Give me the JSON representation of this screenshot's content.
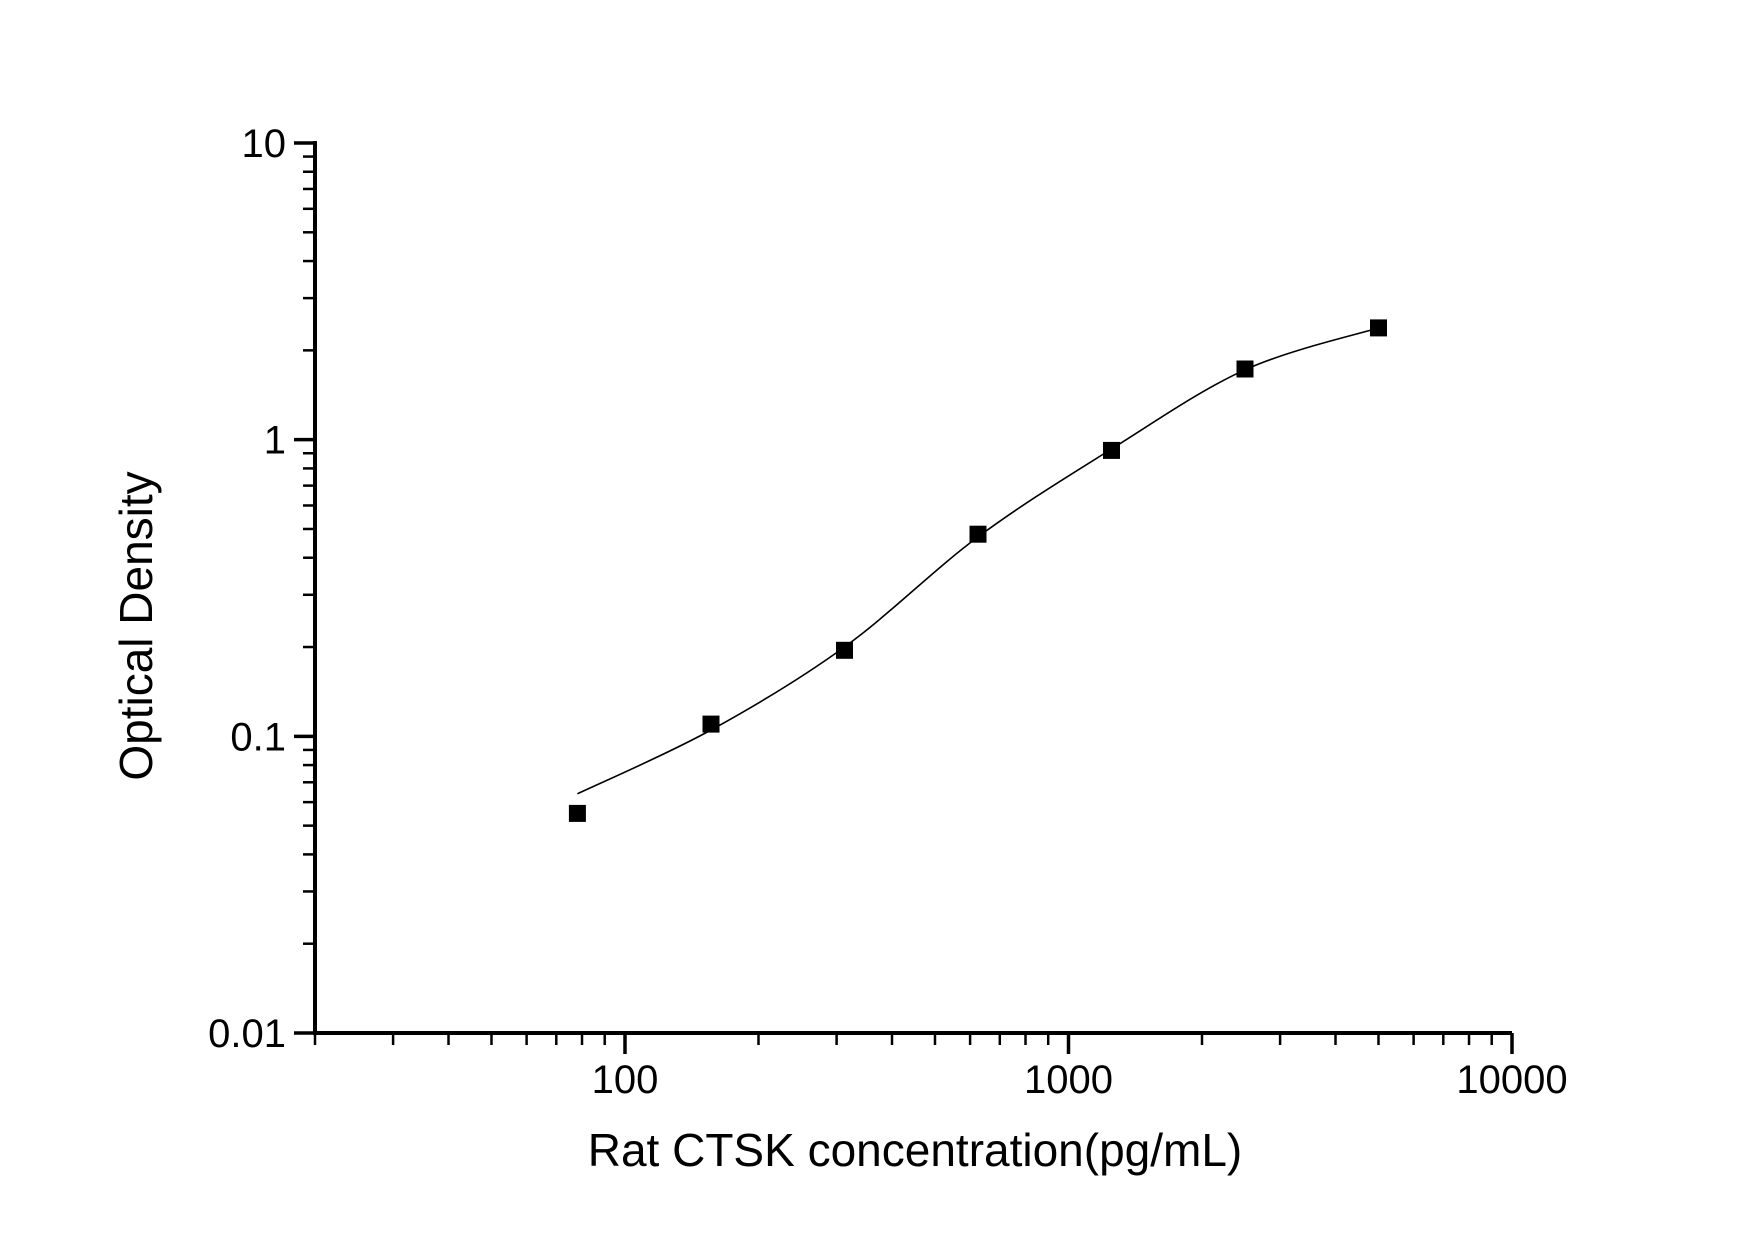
{
  "figure": {
    "background": "#ffffff",
    "axis_color": "#000000",
    "text_color": "#000000"
  },
  "chart_data": {
    "type": "scatter",
    "title": "",
    "xlabel": "Rat CTSK concentration(pg/mL)",
    "ylabel": "Optical Density",
    "x_scale": "log",
    "y_scale": "log",
    "xlim": [
      20,
      10000
    ],
    "ylim": [
      0.01,
      10
    ],
    "grid": false,
    "legend": "none",
    "x_major_ticks": {
      "values": [
        100,
        1000,
        10000
      ],
      "labels": [
        "100",
        "1000",
        "10000"
      ]
    },
    "y_major_ticks": {
      "values": [
        10,
        1,
        0.1,
        0.01
      ],
      "labels": [
        "10",
        "1",
        "0.1",
        "0.01"
      ]
    },
    "x_minor_tick_decades": [
      10,
      100,
      1000
    ],
    "y_minor_tick_decades": [
      0.01,
      0.1,
      1
    ],
    "series": [
      {
        "name": "standard-points",
        "marker": "filled-square",
        "color": "#000000",
        "x": [
          78.125,
          156.25,
          312.5,
          625,
          1250,
          2500,
          5000
        ],
        "y": [
          0.055,
          0.11,
          0.195,
          0.48,
          0.92,
          1.73,
          2.38
        ]
      }
    ],
    "fit_curve": {
      "name": "4pl-fit-curve",
      "color": "#000000",
      "x": [
        78.125,
        156.25,
        312.5,
        625,
        1250,
        2500,
        5000
      ],
      "y": [
        0.064,
        0.105,
        0.2,
        0.47,
        0.93,
        1.72,
        2.38
      ]
    }
  }
}
